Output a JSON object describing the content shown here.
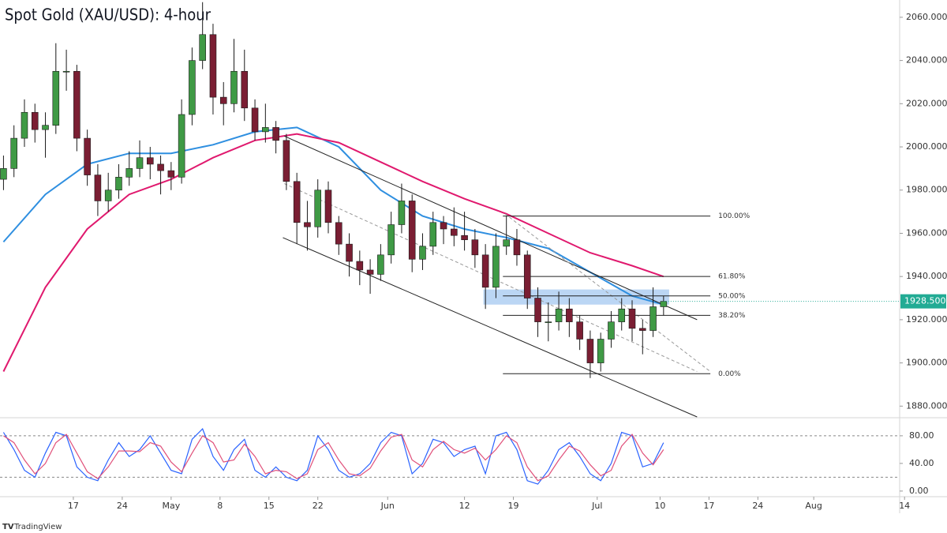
{
  "chart_data": {
    "type": "candlestick",
    "title": "Spot Gold (XAU/USD): 4-hour",
    "x": [
      7,
      8.5,
      10,
      11.5,
      13,
      14.5,
      16,
      17.5,
      19,
      20.5,
      22,
      23.5,
      25,
      26.5,
      28,
      29.5,
      31,
      32.5,
      34,
      35.5,
      37,
      38.5,
      40,
      41.5,
      43,
      44.5,
      46,
      47.5,
      49,
      50.5,
      52,
      53.5,
      55,
      56.5,
      58,
      59.5,
      61,
      62.5,
      64,
      65.5,
      67,
      68.5,
      70,
      71.5,
      73,
      74.5,
      76,
      77.5,
      79,
      80.5,
      82,
      83.5,
      85,
      86.5,
      88,
      89.5,
      91,
      92.5,
      94,
      95.5,
      97,
      98.5,
      100,
      101.5
    ],
    "open": [
      1985,
      1990,
      2004,
      2016,
      2008,
      2010,
      2035,
      2035,
      2004,
      1987,
      1975,
      1980,
      1986,
      1990,
      1995,
      1992,
      1989,
      1986,
      2015,
      2040,
      2052,
      2023,
      2020,
      2035,
      2018,
      2007,
      2009,
      2003,
      1984,
      1965,
      1963,
      1980,
      1965,
      1955,
      1947,
      1943,
      1941,
      1950,
      1964,
      1975,
      1948,
      1954,
      1965,
      1962,
      1959,
      1957,
      1950,
      1935,
      1954,
      1957,
      1950,
      1930,
      1919,
      1919,
      1925,
      1919,
      1911,
      1900,
      1911,
      1919,
      1925,
      1916,
      1915,
      1926
    ],
    "high": [
      1996,
      2010,
      2022,
      2020,
      2016,
      2048,
      2045,
      2038,
      2008,
      1992,
      1988,
      1992,
      1998,
      2003,
      2000,
      1996,
      1993,
      2022,
      2046,
      2067,
      2057,
      2030,
      2050,
      2045,
      2022,
      2020,
      2012,
      2006,
      1988,
      1975,
      1985,
      1984,
      1968,
      1960,
      1952,
      1948,
      1955,
      1970,
      1983,
      1978,
      1960,
      1970,
      1968,
      1972,
      1970,
      1962,
      1955,
      1960,
      1968,
      1962,
      1952,
      1935,
      1928,
      1933,
      1930,
      1922,
      1915,
      1914,
      1924,
      1930,
      1929,
      1920,
      1935,
      1931
    ],
    "low": [
      1980,
      1986,
      2000,
      2002,
      1995,
      2006,
      2026,
      1998,
      1982,
      1968,
      1970,
      1976,
      1982,
      1986,
      1985,
      1978,
      1980,
      1983,
      2010,
      2036,
      2015,
      2010,
      2016,
      2012,
      2003,
      2002,
      1997,
      1980,
      1955,
      1952,
      1958,
      1960,
      1950,
      1940,
      1936,
      1932,
      1938,
      1946,
      1960,
      1942,
      1943,
      1950,
      1955,
      1954,
      1952,
      1944,
      1925,
      1930,
      1950,
      1945,
      1925,
      1912,
      1910,
      1915,
      1912,
      1906,
      1893,
      1896,
      1907,
      1915,
      1910,
      1904,
      1912,
      1922
    ],
    "close": [
      1990,
      2004,
      2016,
      2008,
      2010,
      2035,
      2035,
      2004,
      1987,
      1975,
      1980,
      1986,
      1990,
      1995,
      1992,
      1989,
      1986,
      2015,
      2040,
      2052,
      2023,
      2020,
      2035,
      2018,
      2007,
      2009,
      2003,
      1984,
      1965,
      1963,
      1980,
      1965,
      1955,
      1947,
      1943,
      1941,
      1950,
      1964,
      1975,
      1948,
      1954,
      1965,
      1962,
      1959,
      1957,
      1950,
      1935,
      1954,
      1957,
      1950,
      1930,
      1919,
      1919,
      1925,
      1919,
      1911,
      1900,
      1911,
      1919,
      1925,
      1916,
      1915,
      1926,
      1928.5
    ],
    "up_color": "#3f9a45",
    "down_color": "#7a1e33",
    "xlim": [
      6.5,
      135.3
    ],
    "xticks": [
      {
        "value": 17,
        "label": "17"
      },
      {
        "value": 24,
        "label": "24"
      },
      {
        "value": 31,
        "label": "May"
      },
      {
        "value": 38,
        "label": "8"
      },
      {
        "value": 45,
        "label": "15"
      },
      {
        "value": 52,
        "label": "22"
      },
      {
        "value": 62,
        "label": "Jun"
      },
      {
        "value": 73,
        "label": "12"
      },
      {
        "value": 80,
        "label": "19"
      },
      {
        "value": 92,
        "label": "Jul"
      },
      {
        "value": 101,
        "label": "10"
      },
      {
        "value": 108,
        "label": "17"
      },
      {
        "value": 115,
        "label": "24"
      },
      {
        "value": 123,
        "label": "Aug"
      },
      {
        "value": 136,
        "label": "14"
      }
    ],
    "ylim": [
      1875,
      2068
    ],
    "yticks": [
      {
        "value": 1880,
        "label": "1880.000"
      },
      {
        "value": 1900,
        "label": "1900.000"
      },
      {
        "value": 1920,
        "label": "1920.000"
      },
      {
        "value": 1940,
        "label": "1940.000"
      },
      {
        "value": 1960,
        "label": "1960.000"
      },
      {
        "value": 1980,
        "label": "1980.000"
      },
      {
        "value": 2000,
        "label": "2000.000"
      },
      {
        "value": 2020,
        "label": "2020.000"
      },
      {
        "value": 2040,
        "label": "2040.000"
      },
      {
        "value": 2060,
        "label": "2060.000"
      }
    ],
    "series": [
      {
        "color": "#2f8fe0",
        "x": [
          7,
          13,
          19,
          25,
          31,
          37,
          43,
          49,
          55,
          61,
          67,
          73,
          79,
          85,
          91,
          97,
          101.5
        ],
        "values": [
          1956,
          1978,
          1992,
          1997,
          1997,
          2001,
          2007,
          2009,
          2000,
          1980,
          1968,
          1962,
          1958,
          1953,
          1942,
          1931,
          1927
        ]
      },
      {
        "color": "#e0196e",
        "x": [
          7,
          13,
          19,
          25,
          31,
          37,
          43,
          49,
          55,
          61,
          67,
          73,
          79,
          85,
          91,
          97,
          101.5
        ],
        "values": [
          1896,
          1935,
          1962,
          1978,
          1985,
          1995,
          2003,
          2006,
          2002,
          1993,
          1984,
          1976,
          1969,
          1960,
          1951,
          1945,
          1940
        ]
      }
    ],
    "trendlines": [
      {
        "x": [
          47.2,
          106.3
        ],
        "values": [
          2005,
          1920
        ],
        "dashed": false
      },
      {
        "x": [
          47.0,
          106.3
        ],
        "values": [
          1958,
          1875
        ],
        "dashed": false
      },
      {
        "x": [
          47.2,
          106.3
        ],
        "values": [
          1983,
          1896
        ],
        "dashed": true
      },
      {
        "x": [
          78.8,
          108.2
        ],
        "values": [
          1969,
          1896
        ],
        "dashed": true
      }
    ],
    "zone": {
      "x": [
        75.7,
        102.3
      ],
      "values": [
        1927,
        1934
      ],
      "color": "#9ec5f0"
    },
    "fibonacci": {
      "x": [
        78.5,
        108.2
      ],
      "levels": [
        {
          "label": "100.00%",
          "price": 1968
        },
        {
          "label": "61.80%",
          "price": 1940
        },
        {
          "label": "50.00%",
          "price": 1931
        },
        {
          "label": "38.20%",
          "price": 1922
        },
        {
          "label": "0.00%",
          "price": 1895
        }
      ]
    },
    "last_price": {
      "value": 1928.5,
      "label": "1928.500",
      "color": "#22ab94"
    },
    "oscillator": {
      "ylim": [
        -7,
        105
      ],
      "yticks": [
        {
          "value": 0,
          "label": "0.00"
        },
        {
          "value": 40,
          "label": "40.00"
        },
        {
          "value": 80,
          "label": "80.00"
        }
      ],
      "levels": [
        20,
        80
      ],
      "series": [
        {
          "color": "#2962ff",
          "values": [
            85,
            60,
            30,
            20,
            55,
            85,
            80,
            35,
            20,
            15,
            45,
            70,
            50,
            60,
            80,
            55,
            30,
            25,
            75,
            90,
            50,
            30,
            60,
            75,
            30,
            20,
            35,
            20,
            15,
            30,
            80,
            60,
            30,
            20,
            25,
            40,
            70,
            85,
            80,
            25,
            40,
            75,
            70,
            50,
            60,
            65,
            25,
            80,
            85,
            60,
            15,
            10,
            30,
            60,
            70,
            50,
            25,
            15,
            40,
            85,
            80,
            35,
            40,
            70
          ]
        },
        {
          "color": "#e0507a",
          "values": [
            80,
            70,
            45,
            25,
            40,
            70,
            82,
            55,
            28,
            18,
            35,
            58,
            58,
            57,
            70,
            65,
            42,
            28,
            55,
            80,
            70,
            42,
            45,
            68,
            50,
            25,
            30,
            28,
            18,
            25,
            60,
            70,
            45,
            25,
            22,
            33,
            58,
            78,
            82,
            45,
            35,
            60,
            72,
            60,
            55,
            62,
            45,
            60,
            80,
            70,
            35,
            15,
            22,
            45,
            65,
            58,
            38,
            22,
            30,
            65,
            82,
            55,
            38,
            60
          ]
        }
      ]
    },
    "watermark": "TradingView"
  }
}
